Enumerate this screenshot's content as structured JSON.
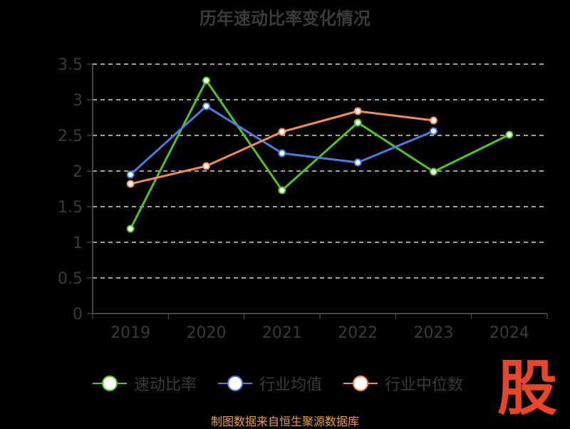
{
  "title": "历年速动比率变化情况",
  "source_note": "制图数据来自恒生聚源数据库",
  "logo_text": "股",
  "colors": {
    "axis": "#5a5a5a",
    "grid": "#ffffff",
    "tick_text": "#3a3a3a",
    "logo": "#e8452a",
    "source": "#e8a040"
  },
  "chart_data": {
    "type": "line",
    "title": "历年速动比率变化情况",
    "categories": [
      "2019",
      "2020",
      "2021",
      "2022",
      "2023",
      "2024"
    ],
    "ylim": [
      0,
      3.5
    ],
    "yticks": [
      "0",
      "0.5",
      "1",
      "1.5",
      "2",
      "2.5",
      "3",
      "3.5"
    ],
    "grid": true,
    "legend_position": "bottom",
    "series": [
      {
        "name": "速动比率",
        "color": "#52c41a",
        "values": [
          1.19,
          3.27,
          1.73,
          2.68,
          1.99,
          2.51
        ]
      },
      {
        "name": "行业均值",
        "color": "#4a7de0",
        "values": [
          1.95,
          2.91,
          2.25,
          2.12,
          2.56,
          null
        ]
      },
      {
        "name": "行业中位数",
        "color": "#f08c5a",
        "values": [
          1.82,
          2.07,
          2.55,
          2.84,
          2.71,
          null
        ]
      }
    ]
  }
}
